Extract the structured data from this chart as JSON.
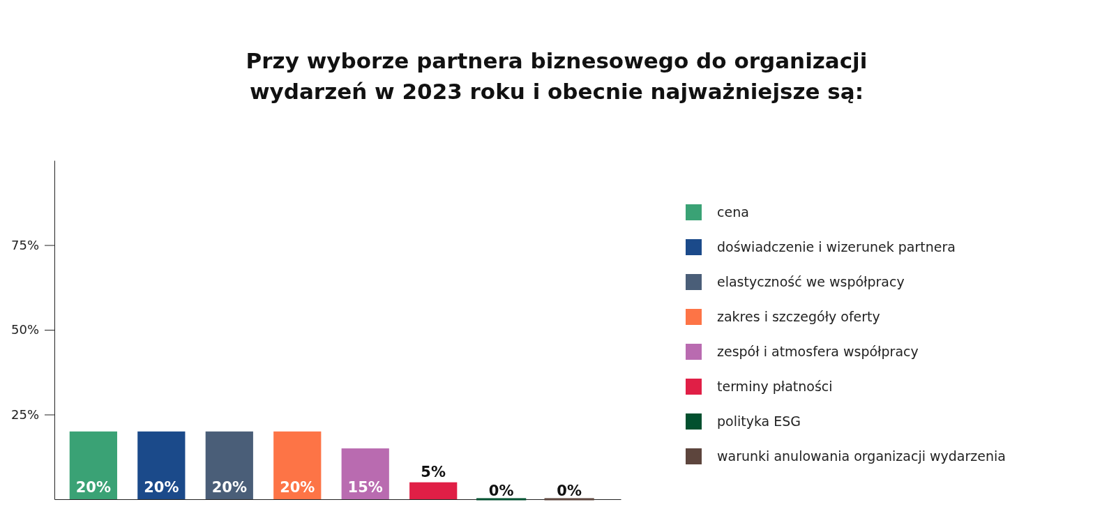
{
  "chart_data": {
    "type": "bar",
    "title": "Przy wyborze partnera biznesowego do organizacji\nwydarzeń w 2023 roku i obecnie najważniejsze są:",
    "categories": [
      null,
      null,
      null,
      null,
      null,
      null,
      null,
      null
    ],
    "series": [
      {
        "name": "cena",
        "color": "#3aa275",
        "values": [
          20,
          null,
          null,
          null,
          null,
          null,
          null,
          null
        ],
        "value_labels": [
          "20%",
          null,
          null,
          null,
          null,
          null,
          null,
          null
        ]
      },
      {
        "name": "doświadczenie i wizerunek partnera",
        "color": "#1b4a8a",
        "values": [
          null,
          20,
          null,
          null,
          null,
          null,
          null,
          null
        ],
        "value_labels": [
          null,
          "20%",
          null,
          null,
          null,
          null,
          null,
          null
        ]
      },
      {
        "name": "elastyczność we współpracy",
        "color": "#4a5e78",
        "values": [
          null,
          null,
          20,
          null,
          null,
          null,
          null,
          null
        ],
        "value_labels": [
          null,
          null,
          "20%",
          null,
          null,
          null,
          null,
          null
        ]
      },
      {
        "name": "zakres i szczegóły oferty",
        "color": "#fd7446",
        "values": [
          null,
          null,
          null,
          20,
          null,
          null,
          null,
          null
        ],
        "value_labels": [
          null,
          null,
          null,
          "20%",
          null,
          null,
          null,
          null
        ]
      },
      {
        "name": "zespół i atmosfera współpracy",
        "color": "#b96bb0",
        "values": [
          null,
          null,
          null,
          null,
          15,
          null,
          null,
          null
        ],
        "value_labels": [
          null,
          null,
          null,
          null,
          "15%",
          null,
          null,
          null
        ]
      },
      {
        "name": "terminy płatności",
        "color": "#e01f46",
        "values": [
          null,
          null,
          null,
          null,
          null,
          5,
          null,
          null
        ],
        "value_labels": [
          null,
          null,
          null,
          null,
          null,
          "5%",
          null,
          null
        ]
      },
      {
        "name": "polityka ESG",
        "color": "#02502f",
        "values": [
          null,
          null,
          null,
          null,
          null,
          null,
          0,
          null
        ],
        "value_labels": [
          null,
          null,
          null,
          null,
          null,
          null,
          "0%",
          null
        ]
      },
      {
        "name": "warunki anulowania organizacji wydarzenia",
        "color": "#5d453d",
        "values": [
          null,
          null,
          null,
          null,
          null,
          null,
          null,
          0
        ],
        "value_labels": [
          null,
          null,
          null,
          null,
          null,
          null,
          null,
          "0%"
        ]
      }
    ],
    "ylim": [
      0,
      100
    ],
    "yticks": [
      {
        "value": 25,
        "label": "25%"
      },
      {
        "value": 50,
        "label": "50%"
      },
      {
        "value": 75,
        "label": "75%"
      }
    ],
    "legend": "right",
    "tick_labels": "y"
  }
}
